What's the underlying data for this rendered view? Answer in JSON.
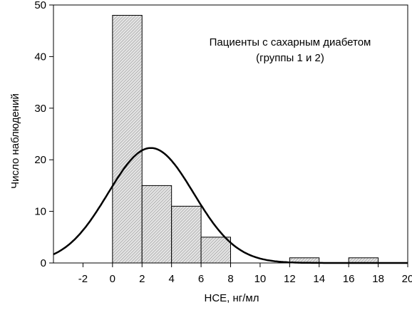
{
  "chart_data": {
    "type": "bar",
    "title": "Пациенты с сахарным диабетом",
    "subtitle": "(группы 1 и 2)",
    "xlabel": "НСЕ, нг/мл",
    "ylabel": "Число наблюдений",
    "xlim": [
      -4,
      20
    ],
    "ylim": [
      0,
      50
    ],
    "x_ticks": [
      -2,
      0,
      2,
      4,
      6,
      8,
      10,
      12,
      14,
      16,
      18,
      20
    ],
    "y_ticks": [
      0,
      10,
      20,
      30,
      40,
      50
    ],
    "bins": [
      {
        "from": 0,
        "to": 2,
        "count": 48
      },
      {
        "from": 2,
        "to": 4,
        "count": 15
      },
      {
        "from": 4,
        "to": 6,
        "count": 11
      },
      {
        "from": 6,
        "to": 8,
        "count": 5
      },
      {
        "from": 12,
        "to": 14,
        "count": 1
      },
      {
        "from": 16,
        "to": 18,
        "count": 1
      }
    ],
    "normal_curve": {
      "mean": 2.6,
      "sd": 2.9,
      "n": 81,
      "bin_width": 2
    }
  }
}
